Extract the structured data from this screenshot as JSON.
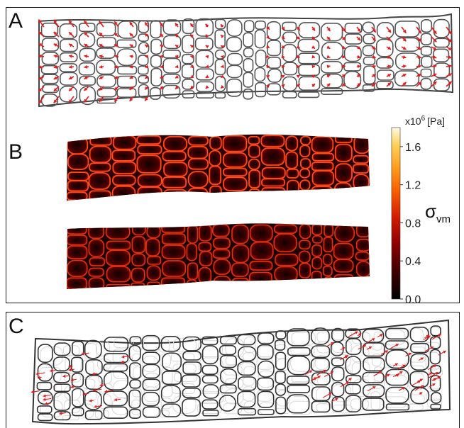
{
  "panels": {
    "a": {
      "label": "A"
    },
    "b": {
      "label": "B"
    },
    "c": {
      "label": "C"
    }
  },
  "colorbar": {
    "unit_base": "x10",
    "unit_exponent": "6",
    "unit_suffix": "[Pa]",
    "symbol": "σ",
    "symbol_subscript": "vm",
    "ticks": [
      "1.6",
      "1.2",
      "0.8",
      "0.4",
      "0.0"
    ],
    "tick_values": [
      1.6,
      1.2,
      0.8,
      0.4,
      0.0
    ],
    "range": [
      0.0,
      1.8
    ],
    "colormap": [
      "#000000",
      "#3a0000",
      "#8c0000",
      "#d41c00",
      "#f75a00",
      "#ff9a1a",
      "#ffd25a",
      "#fffbe6"
    ]
  },
  "colors": {
    "cell_wall_outline": "#555555",
    "displacement_arrow": "#e41a1c",
    "stress_map_background": "#2b0000",
    "stress_map_wall": "#ff3a10"
  }
}
